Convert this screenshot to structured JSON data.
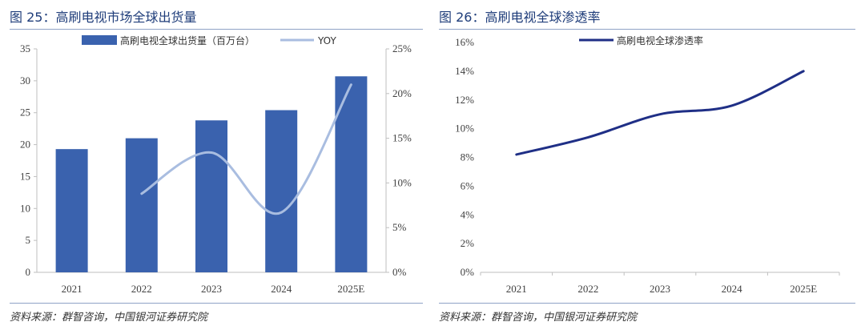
{
  "figures": [
    {
      "title": "图 25：高刷电视市场全球出货量",
      "source": "资料来源：群智咨询，中国银河证券研究院",
      "chart_data": {
        "type": "bar",
        "categories": [
          "2021",
          "2022",
          "2023",
          "2024",
          "2025E"
        ],
        "series": [
          {
            "name": "高刷电视全球出货量（百万台）",
            "type": "bar",
            "axis": "left",
            "values": [
              19.3,
              21.0,
              23.8,
              25.4,
              30.7
            ],
            "color": "#3a62ae"
          },
          {
            "name": "YOY",
            "type": "line",
            "axis": "right",
            "values": [
              null,
              8.8,
              13.4,
              6.7,
              21.0
            ],
            "color": "#a9bde0"
          }
        ],
        "ylim_left": [
          0,
          35
        ],
        "yticks_left": [
          "0",
          "5",
          "10",
          "15",
          "20",
          "25",
          "30",
          "35"
        ],
        "ylim_right": [
          0,
          25
        ],
        "yticks_right": [
          "0%",
          "5%",
          "10%",
          "15%",
          "20%",
          "25%"
        ],
        "legend_position": "top-center",
        "grid": false
      }
    },
    {
      "title": "图 26：高刷电视全球渗透率",
      "source": "资料来源：群智咨询，中国银河证券研究院",
      "chart_data": {
        "type": "line",
        "categories": [
          "2021",
          "2022",
          "2023",
          "2024",
          "2025E"
        ],
        "series": [
          {
            "name": "高刷电视全球渗透率",
            "values": [
              8.2,
              9.4,
              11.0,
              11.6,
              14.0
            ],
            "color": "#1f2f86"
          }
        ],
        "ylim": [
          0,
          16
        ],
        "yticks": [
          "0%",
          "2%",
          "4%",
          "6%",
          "8%",
          "10%",
          "12%",
          "14%",
          "16%"
        ],
        "legend_position": "top-center",
        "grid": false
      }
    }
  ]
}
